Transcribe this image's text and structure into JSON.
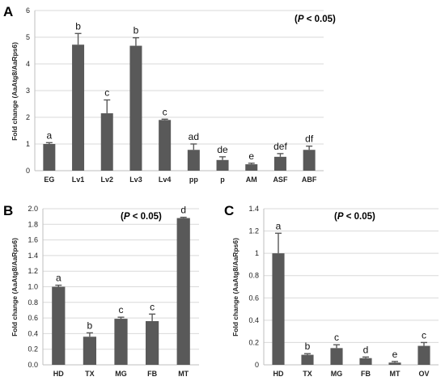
{
  "bar_color": "#595959",
  "chart_data": [
    {
      "type": "bar",
      "panel": "A",
      "annotation": "(P < 0.05)",
      "ylabel": "Fold change (AaAtg8/AaRps6)",
      "ylim": [
        0,
        6
      ],
      "yticks": [
        "0",
        "1",
        "2",
        "3",
        "4",
        "5",
        "6"
      ],
      "categories": [
        "EG",
        "Lv1",
        "Lv2",
        "Lv3",
        "Lv4",
        "pp",
        "p",
        "AM",
        "ASF",
        "ABF"
      ],
      "values": [
        1.0,
        4.72,
        2.15,
        4.68,
        1.9,
        0.78,
        0.4,
        0.24,
        0.52,
        0.78
      ],
      "errors": [
        0.05,
        0.42,
        0.5,
        0.3,
        0.03,
        0.22,
        0.12,
        0.04,
        0.12,
        0.14
      ],
      "letters": [
        "a",
        "b",
        "c",
        "b",
        "c",
        "ad",
        "de",
        "e",
        "def",
        "df"
      ],
      "grid": true
    },
    {
      "type": "bar",
      "panel": "B",
      "annotation": "(P < 0.05)",
      "ylabel": "Fold change (AaAtg8/AaRps6)",
      "ylim": [
        0,
        2.0
      ],
      "yticks": [
        "0.0",
        "0.2",
        "0.4",
        "0.6",
        "0.8",
        "1.0",
        "1.2",
        "1.4",
        "1.6",
        "1.8",
        "2.0"
      ],
      "categories": [
        "HD",
        "TX",
        "MG",
        "FB",
        "MT"
      ],
      "values": [
        1.0,
        0.36,
        0.59,
        0.56,
        1.88
      ],
      "errors": [
        0.02,
        0.05,
        0.02,
        0.09,
        0.01
      ],
      "letters": [
        "a",
        "b",
        "c",
        "c",
        "d"
      ],
      "grid": true
    },
    {
      "type": "bar",
      "panel": "C",
      "annotation": "(P < 0.05)",
      "ylabel": "Fold change (AaAtg8/AaRps6)",
      "ylim": [
        0,
        1.4
      ],
      "yticks": [
        "0",
        "0.2",
        "0.4",
        "0.6",
        "0.8",
        "1",
        "1.2",
        "1.4"
      ],
      "categories": [
        "HD",
        "TX",
        "MG",
        "FB",
        "MT",
        "OV"
      ],
      "values": [
        1.0,
        0.09,
        0.15,
        0.06,
        0.02,
        0.17
      ],
      "errors": [
        0.18,
        0.01,
        0.03,
        0.01,
        0.01,
        0.03
      ],
      "letters": [
        "a",
        "b",
        "c",
        "d",
        "e",
        "c"
      ],
      "grid": true
    }
  ]
}
